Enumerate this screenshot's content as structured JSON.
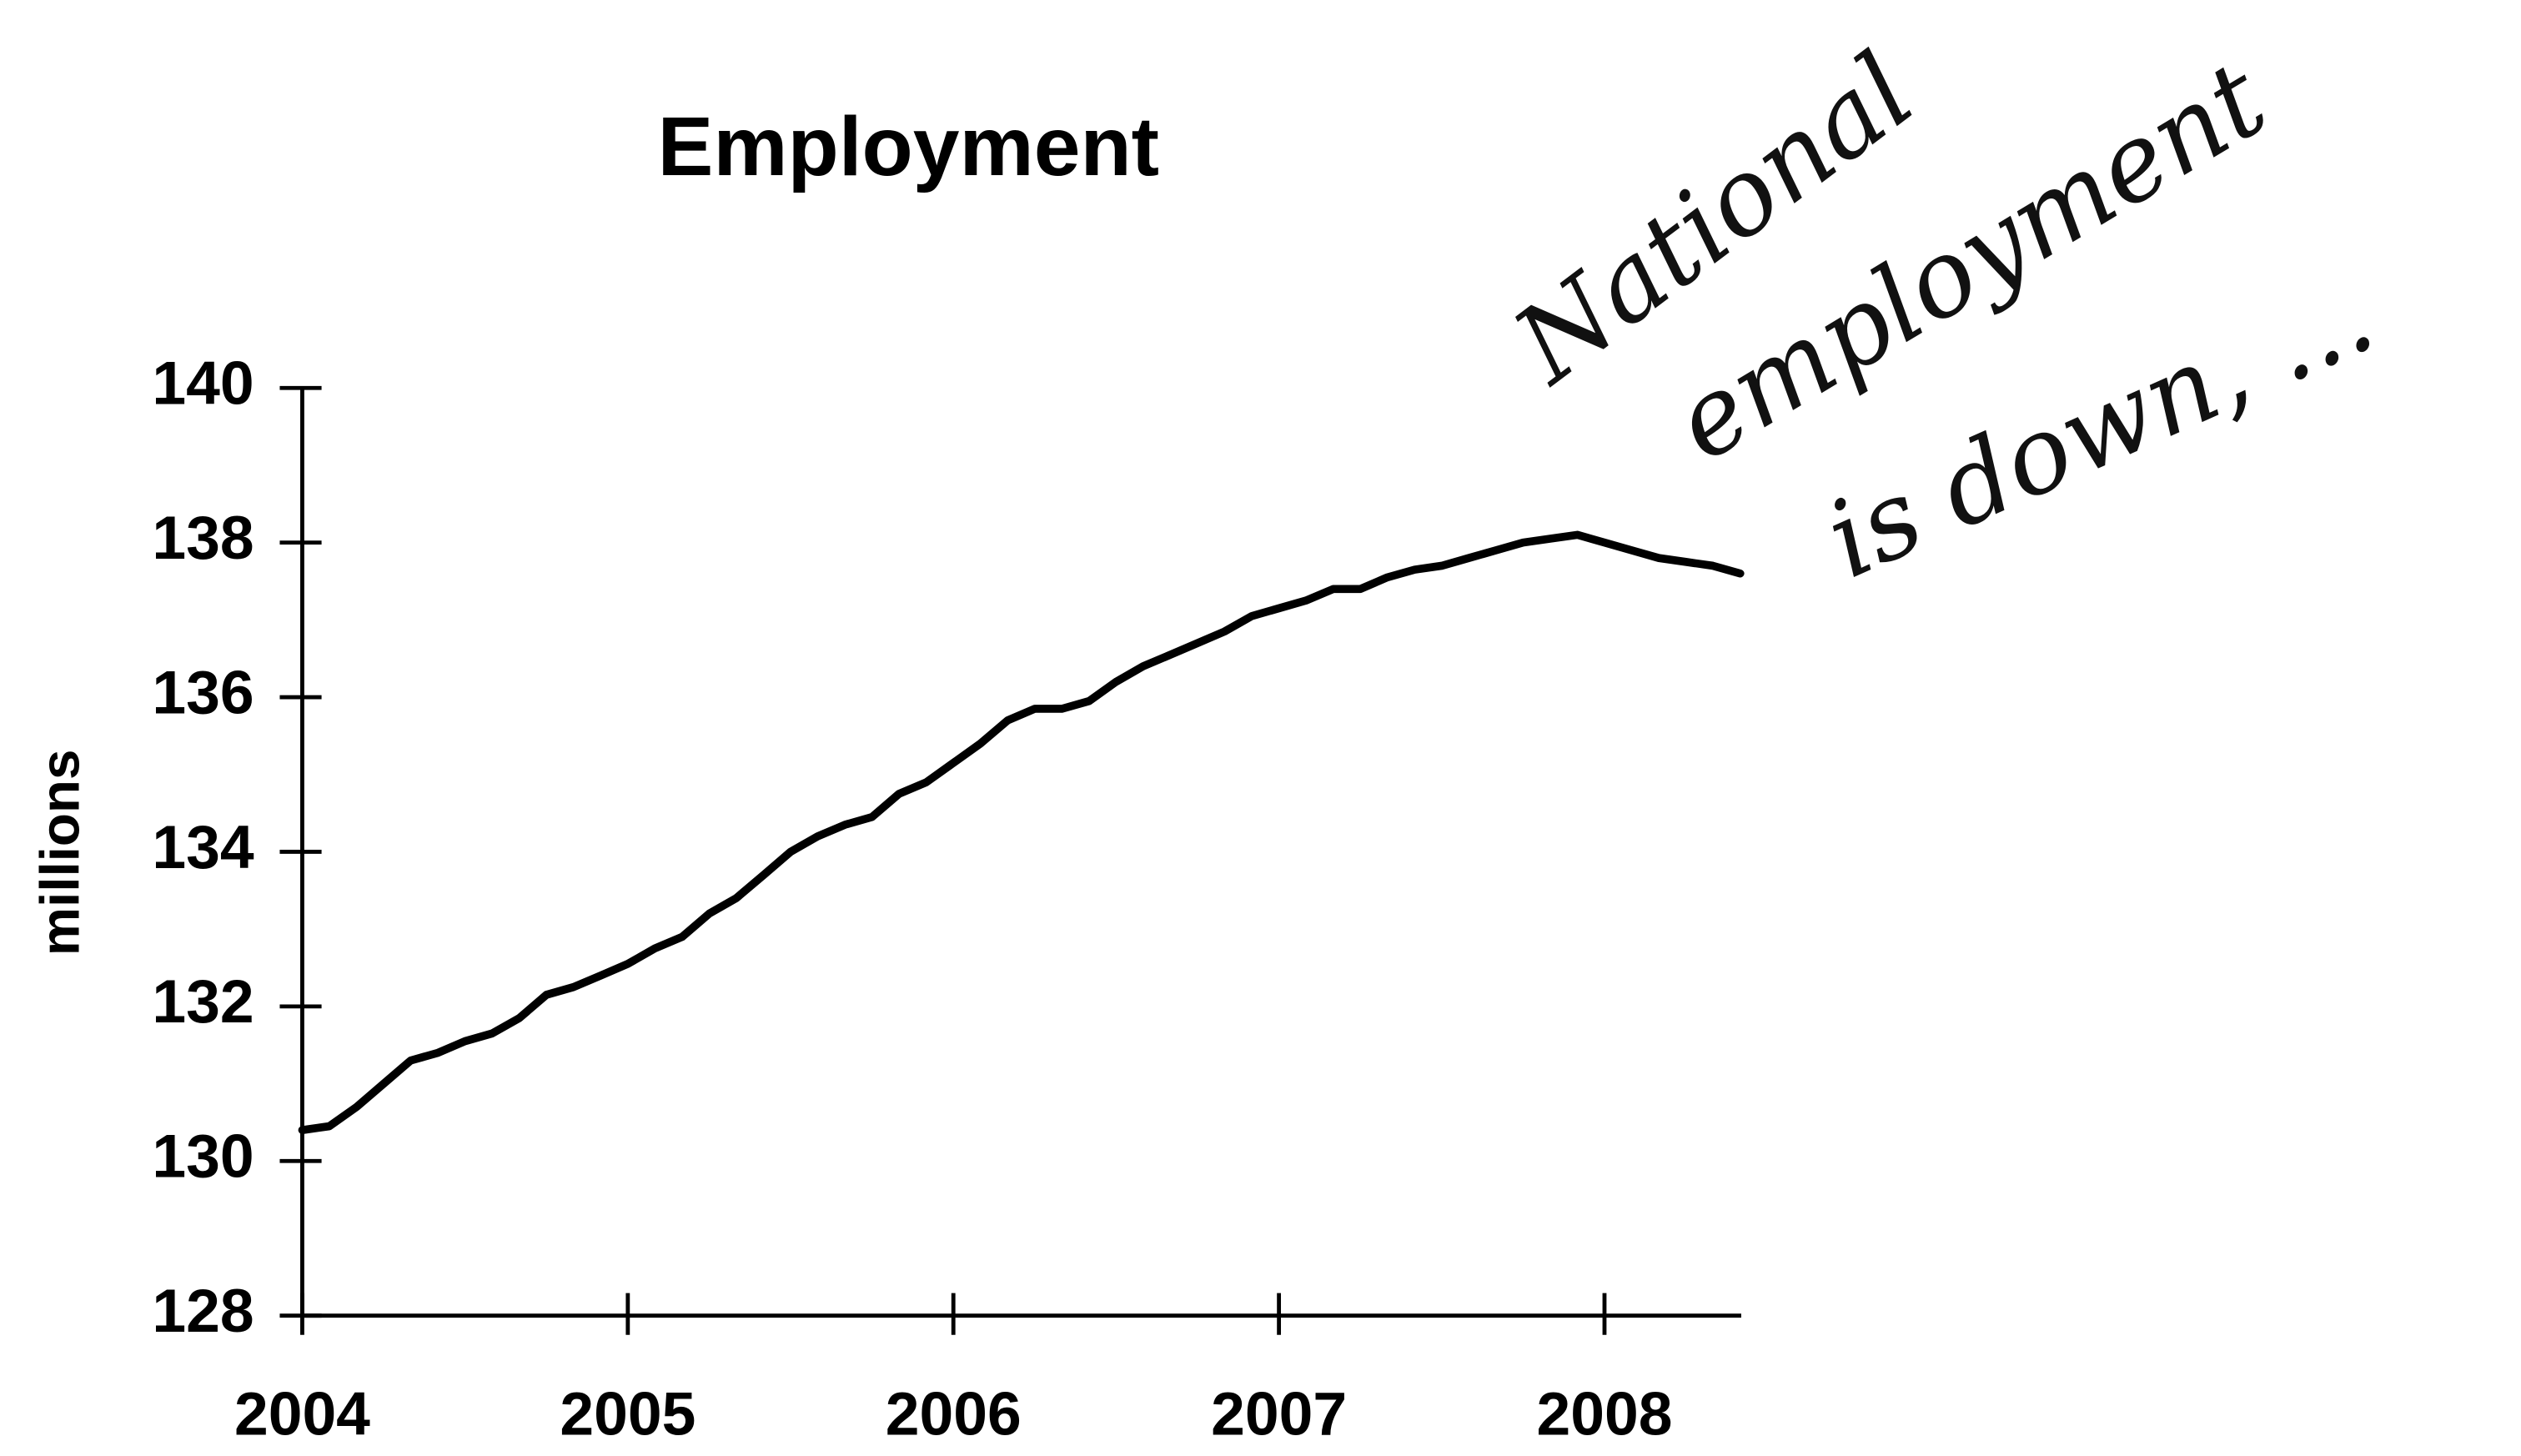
{
  "chart_data": {
    "type": "line",
    "title": "Employment",
    "y_label": "millions",
    "annotation": [
      "National",
      "employment",
      "is down, ..."
    ],
    "x": [
      2004,
      2004.083,
      2004.167,
      2004.25,
      2004.333,
      2004.417,
      2004.5,
      2004.583,
      2004.667,
      2004.75,
      2004.833,
      2004.917,
      2005,
      2005.083,
      2005.167,
      2005.25,
      2005.333,
      2005.417,
      2005.5,
      2005.583,
      2005.667,
      2005.75,
      2005.833,
      2005.917,
      2006,
      2006.083,
      2006.167,
      2006.25,
      2006.333,
      2006.417,
      2006.5,
      2006.583,
      2006.667,
      2006.75,
      2006.833,
      2006.917,
      2007,
      2007.083,
      2007.167,
      2007.25,
      2007.333,
      2007.417,
      2007.5,
      2007.583,
      2007.667,
      2007.75,
      2007.833,
      2007.917,
      2008,
      2008.083,
      2008.167,
      2008.25,
      2008.333,
      2008.417
    ],
    "series": [
      {
        "name": "Employment",
        "color": "#000000",
        "values": [
          130.4,
          130.45,
          130.7,
          131.0,
          131.3,
          131.4,
          131.55,
          131.65,
          131.85,
          132.15,
          132.25,
          132.4,
          132.55,
          132.75,
          132.9,
          133.2,
          133.4,
          133.7,
          134.0,
          134.2,
          134.35,
          134.45,
          134.75,
          134.9,
          135.15,
          135.4,
          135.7,
          135.85,
          135.85,
          135.95,
          136.2,
          136.4,
          136.55,
          136.7,
          136.85,
          137.05,
          137.15,
          137.25,
          137.4,
          137.4,
          137.55,
          137.65,
          137.7,
          137.8,
          137.9,
          138.0,
          138.05,
          138.1,
          138.0,
          137.9,
          137.8,
          137.75,
          137.7,
          137.6
        ]
      }
    ],
    "xlim": [
      2004,
      2008.42
    ],
    "xticks": [
      2004,
      2005,
      2006,
      2007,
      2008
    ],
    "ylim": [
      128,
      140
    ],
    "yticks": [
      128,
      130,
      132,
      134,
      136,
      138,
      140
    ],
    "grid": false
  }
}
